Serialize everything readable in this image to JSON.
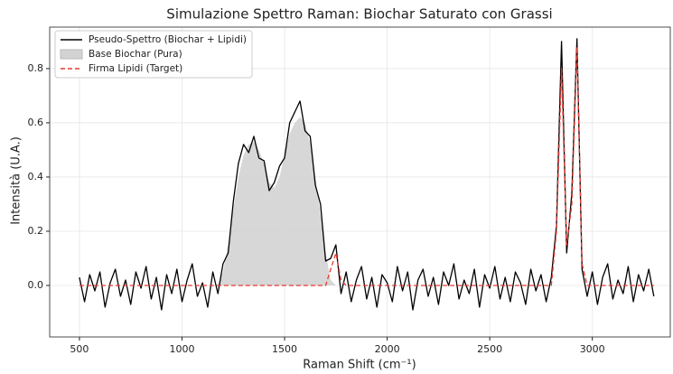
{
  "chart_data": {
    "type": "line",
    "title": "Simulazione Spettro Raman: Biochar Saturato con Grassi",
    "xlabel": "Raman Shift (cm⁻¹)",
    "ylabel": "Intensità (U.A.)",
    "xlim": [
      355,
      3380
    ],
    "ylim": [
      -0.19,
      0.953
    ],
    "xticks": [
      500,
      1000,
      1500,
      2000,
      2500,
      3000
    ],
    "yticks": [
      {
        "value": 0,
        "label": "0.0"
      },
      0.2,
      0.4,
      0.6,
      0.8
    ],
    "grid": true,
    "legend": "upper left",
    "x": [
      500,
      525,
      550,
      575,
      600,
      625,
      650,
      675,
      700,
      725,
      750,
      775,
      800,
      825,
      850,
      875,
      900,
      925,
      950,
      975,
      1000,
      1025,
      1050,
      1075,
      1100,
      1125,
      1150,
      1175,
      1200,
      1225,
      1250,
      1275,
      1300,
      1325,
      1350,
      1375,
      1400,
      1425,
      1450,
      1475,
      1500,
      1525,
      1550,
      1575,
      1600,
      1625,
      1650,
      1675,
      1700,
      1725,
      1750,
      1775,
      1800,
      1825,
      1850,
      1875,
      1900,
      1925,
      1950,
      1975,
      2000,
      2025,
      2050,
      2075,
      2100,
      2125,
      2150,
      2175,
      2200,
      2225,
      2250,
      2275,
      2300,
      2325,
      2350,
      2375,
      2400,
      2425,
      2450,
      2475,
      2500,
      2525,
      2550,
      2575,
      2600,
      2625,
      2650,
      2675,
      2700,
      2725,
      2750,
      2775,
      2800,
      2825,
      2850,
      2875,
      2900,
      2925,
      2950,
      2975,
      3000,
      3025,
      3050,
      3075,
      3100,
      3125,
      3150,
      3175,
      3200,
      3225,
      3250,
      3275,
      3300
    ],
    "series": [
      {
        "name": "Base Biochar (Pura)",
        "color": "#d3d3d3",
        "style": "fill",
        "values": [
          0,
          0,
          0,
          0,
          0,
          0,
          0,
          0,
          0,
          0,
          0,
          0,
          0,
          0,
          0,
          0,
          0,
          0,
          0,
          0,
          0,
          0,
          0,
          0,
          0,
          0,
          0,
          0,
          0.05,
          0.15,
          0.28,
          0.4,
          0.48,
          0.52,
          0.53,
          0.5,
          0.45,
          0.38,
          0.36,
          0.4,
          0.48,
          0.56,
          0.6,
          0.62,
          0.6,
          0.52,
          0.4,
          0.26,
          0.12,
          0.02,
          0,
          0,
          0,
          0,
          0,
          0,
          0,
          0,
          0,
          0,
          0,
          0,
          0,
          0,
          0,
          0,
          0,
          0,
          0,
          0,
          0,
          0,
          0,
          0,
          0,
          0,
          0,
          0,
          0,
          0,
          0,
          0,
          0,
          0,
          0,
          0,
          0,
          0,
          0,
          0,
          0,
          0,
          0,
          0,
          0,
          0,
          0,
          0,
          0,
          0,
          0,
          0,
          0,
          0,
          0,
          0,
          0,
          0,
          0,
          0,
          0,
          0,
          0
        ]
      },
      {
        "name": "Pseudo-Spettro (Biochar + Lipidi)",
        "color": "#000000",
        "style": "solid",
        "values": [
          0.03,
          -0.06,
          0.04,
          -0.02,
          0.05,
          -0.08,
          0.01,
          0.06,
          -0.04,
          0.02,
          -0.07,
          0.05,
          -0.01,
          0.07,
          -0.05,
          0.03,
          -0.09,
          0.04,
          -0.03,
          0.06,
          -0.06,
          0.02,
          0.08,
          -0.04,
          0.01,
          -0.08,
          0.05,
          -0.03,
          0.08,
          0.12,
          0.31,
          0.45,
          0.52,
          0.49,
          0.55,
          0.47,
          0.46,
          0.35,
          0.38,
          0.44,
          0.47,
          0.6,
          0.64,
          0.68,
          0.57,
          0.55,
          0.37,
          0.3,
          0.09,
          0.1,
          0.15,
          -0.03,
          0.05,
          -0.06,
          0.02,
          0.07,
          -0.05,
          0.03,
          -0.08,
          0.04,
          0.01,
          -0.06,
          0.07,
          -0.02,
          0.05,
          -0.09,
          0.02,
          0.06,
          -0.04,
          0.03,
          -0.07,
          0.05,
          0.0,
          0.08,
          -0.05,
          0.02,
          -0.03,
          0.06,
          -0.08,
          0.04,
          -0.01,
          0.07,
          -0.05,
          0.03,
          -0.06,
          0.05,
          0.01,
          -0.07,
          0.06,
          -0.02,
          0.04,
          -0.06,
          0.03,
          0.22,
          0.9,
          0.12,
          0.34,
          0.91,
          0.06,
          -0.04,
          0.05,
          -0.07,
          0.03,
          0.08,
          -0.05,
          0.02,
          -0.03,
          0.07,
          -0.06,
          0.04,
          -0.02,
          0.06,
          -0.04
        ]
      },
      {
        "name": "Firma Lipidi (Target)",
        "color": "#e8392f",
        "style": "dashed",
        "values": [
          0,
          0,
          0,
          0,
          0,
          0,
          0,
          0,
          0,
          0,
          0,
          0,
          0,
          0,
          0,
          0,
          0,
          0,
          0,
          0,
          0,
          0,
          0,
          0,
          0,
          0,
          0,
          0,
          0,
          0,
          0,
          0,
          0,
          0,
          0,
          0,
          0,
          0,
          0,
          0,
          0,
          0,
          0,
          0,
          0,
          0,
          0,
          0,
          0,
          0.06,
          0.12,
          0.02,
          0,
          0,
          0,
          0,
          0,
          0,
          0,
          0,
          0,
          0,
          0,
          0,
          0,
          0,
          0,
          0,
          0,
          0,
          0,
          0,
          0,
          0,
          0,
          0,
          0,
          0,
          0,
          0,
          0,
          0,
          0,
          0,
          0,
          0,
          0,
          0,
          0,
          0,
          0,
          0,
          0,
          0.2,
          0.8,
          0.15,
          0.3,
          0.88,
          0.08,
          0,
          0,
          0,
          0,
          0,
          0,
          0,
          0,
          0,
          0,
          0,
          0,
          0,
          0
        ]
      }
    ]
  }
}
